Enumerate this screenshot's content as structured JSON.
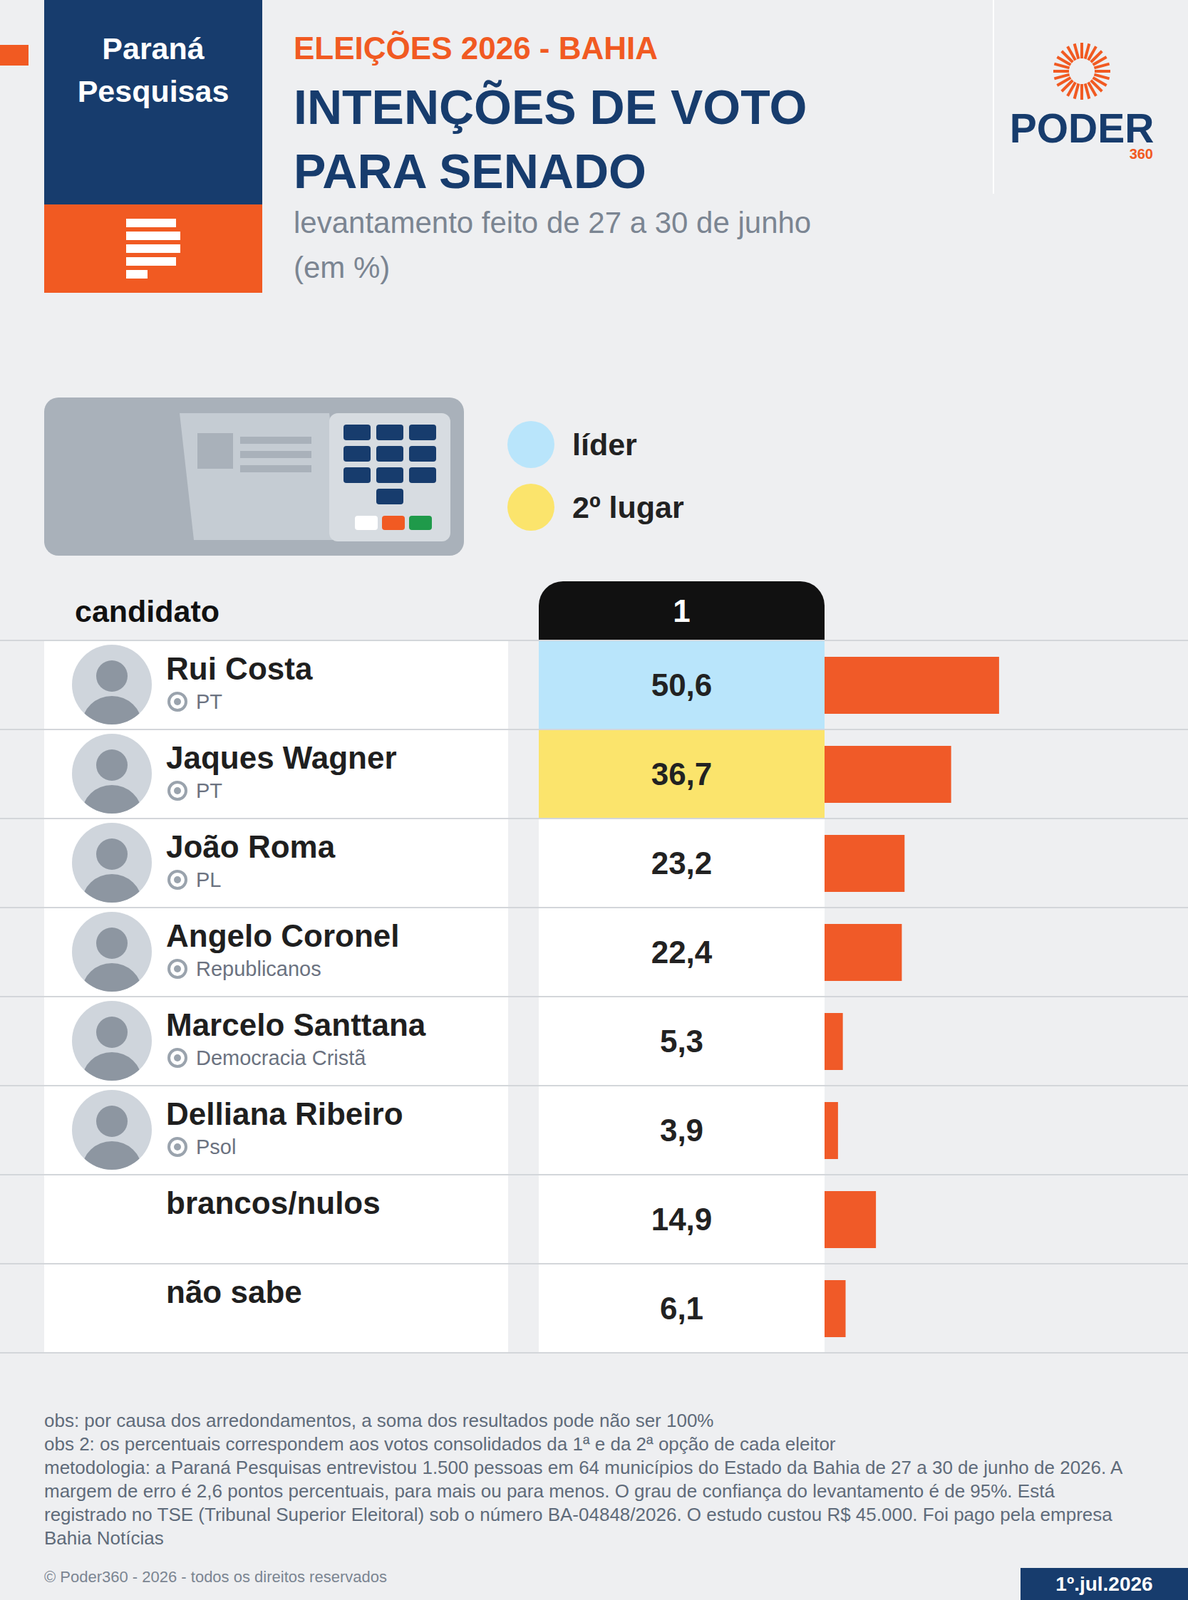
{
  "header": {
    "logo_left": "Paraná Pesquisas",
    "kicker": "ELEIÇÕES 2026 - BAHIA",
    "logo_right": "PODER",
    "logo_right_sub": "360"
  },
  "chart_data": {
    "type": "bar",
    "title": "INTENÇÕES DE VOTO PARA SENADO",
    "subtitle": "levantamento feito de 27 a 30 de junho (em %)",
    "orientation": "horizontal",
    "row_header": "candidato",
    "column_header": "1",
    "categories": [
      "Rui Costa",
      "Jaques Wagner",
      "João Roma",
      "Angelo Coronel",
      "Marcelo Santtana",
      "Delliana Ribeiro",
      "brancos/nulos",
      "não sabe"
    ],
    "parties": [
      "PT",
      "PT",
      "PL",
      "Republicanos",
      "Democracia Cristã",
      "Psol",
      null,
      null
    ],
    "values": [
      50.6,
      36.7,
      23.2,
      22.4,
      5.3,
      3.9,
      14.9,
      6.1
    ],
    "value_labels": [
      "50,6",
      "36,7",
      "23,2",
      "22,4",
      "5,3",
      "3,9",
      "14,9",
      "6,1"
    ],
    "color": "#f05a28",
    "xlim": [
      0,
      100
    ],
    "data_labels": true,
    "tick_labels": false,
    "legend": "top",
    "legend_labels": [
      "líder",
      "2º lugar"
    ],
    "legend_colors": [
      "#b9e5fb",
      "#fbe46c"
    ]
  },
  "notes": [
    "obs: por causa dos arredondamentos, a soma dos resultados pode não ser 100%",
    "obs 2: os percentuais correspondem aos votos consolidados da 1ª e da 2ª opção de cada eleitor",
    "metodologia: a Paraná Pesquisas entrevistou 1.500 pessoas em 64 municípios do Estado da Bahia de 27 a 30 de junho de 2026. A margem de erro é 2,6 pontos percentuais, para mais ou para menos. O grau de confiança do levantamento é de 95%. Está registrado no TSE (Tribunal Superior Eleitoral) sob o número BA-04848/2026. O estudo custou R$ 45.000. Foi pago pela empresa Bahia Notícias"
  ],
  "footer": {
    "copyright": "© Poder360 - 2026 - todos os direitos reservados",
    "date": "1º.jul.2026"
  }
}
